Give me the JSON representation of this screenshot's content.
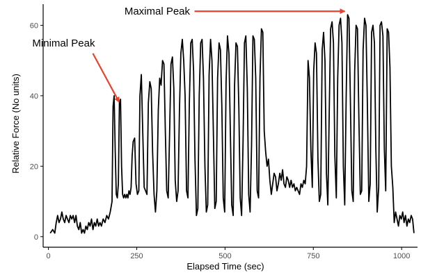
{
  "chart_data": {
    "type": "line",
    "title": "",
    "xlabel": "Elapsed Time (sec)",
    "ylabel": "Relative Force (No units)",
    "xlim": [
      -15,
      1045
    ],
    "ylim": [
      -3,
      66
    ],
    "x_ticks": [
      0,
      250,
      500,
      750,
      1000
    ],
    "y_ticks": [
      0,
      20,
      40,
      60
    ],
    "grid": false,
    "colors": {
      "line": "#000000",
      "arrow": "#e8412c",
      "axis": "#000000",
      "tick_label": "#4d4d4d"
    },
    "series": [
      {
        "values": [
          [
            5,
            1
          ],
          [
            12,
            2
          ],
          [
            18,
            1
          ],
          [
            22,
            4
          ],
          [
            26,
            6
          ],
          [
            30,
            4
          ],
          [
            34,
            5
          ],
          [
            38,
            7
          ],
          [
            42,
            5
          ],
          [
            46,
            4
          ],
          [
            50,
            6
          ],
          [
            54,
            5
          ],
          [
            58,
            4
          ],
          [
            62,
            6
          ],
          [
            66,
            5
          ],
          [
            70,
            6
          ],
          [
            74,
            4
          ],
          [
            78,
            6
          ],
          [
            82,
            3
          ],
          [
            86,
            2
          ],
          [
            90,
            4
          ],
          [
            94,
            1
          ],
          [
            98,
            2
          ],
          [
            102,
            1
          ],
          [
            106,
            3
          ],
          [
            110,
            2
          ],
          [
            114,
            4
          ],
          [
            118,
            3
          ],
          [
            122,
            5
          ],
          [
            126,
            2
          ],
          [
            130,
            4
          ],
          [
            134,
            3
          ],
          [
            138,
            5
          ],
          [
            142,
            3
          ],
          [
            146,
            4
          ],
          [
            150,
            3
          ],
          [
            155,
            5
          ],
          [
            160,
            4
          ],
          [
            165,
            6
          ],
          [
            170,
            5
          ],
          [
            175,
            7
          ],
          [
            180,
            10
          ],
          [
            183,
            37
          ],
          [
            186,
            40
          ],
          [
            189,
            25
          ],
          [
            192,
            12
          ],
          [
            195,
            11
          ],
          [
            198,
            15
          ],
          [
            201,
            38
          ],
          [
            204,
            39
          ],
          [
            207,
            20
          ],
          [
            210,
            12
          ],
          [
            213,
            11
          ],
          [
            216,
            12
          ],
          [
            219,
            11
          ],
          [
            222,
            12
          ],
          [
            225,
            11
          ],
          [
            228,
            13
          ],
          [
            231,
            12
          ],
          [
            234,
            14
          ],
          [
            237,
            23
          ],
          [
            240,
            27
          ],
          [
            244,
            28
          ],
          [
            248,
            15
          ],
          [
            252,
            12
          ],
          [
            256,
            13
          ],
          [
            259,
            40
          ],
          [
            263,
            46
          ],
          [
            267,
            30
          ],
          [
            271,
            14
          ],
          [
            275,
            13
          ],
          [
            279,
            12
          ],
          [
            283,
            38
          ],
          [
            287,
            44
          ],
          [
            291,
            42
          ],
          [
            295,
            24
          ],
          [
            299,
            12
          ],
          [
            303,
            7
          ],
          [
            307,
            13
          ],
          [
            311,
            36
          ],
          [
            315,
            45
          ],
          [
            319,
            43
          ],
          [
            323,
            50
          ],
          [
            327,
            49
          ],
          [
            331,
            30
          ],
          [
            335,
            13
          ],
          [
            339,
            11
          ],
          [
            343,
            29
          ],
          [
            347,
            49
          ],
          [
            351,
            51
          ],
          [
            355,
            42
          ],
          [
            359,
            16
          ],
          [
            363,
            10
          ],
          [
            367,
            13
          ],
          [
            371,
            36
          ],
          [
            375,
            52
          ],
          [
            379,
            56
          ],
          [
            383,
            50
          ],
          [
            387,
            40
          ],
          [
            391,
            13
          ],
          [
            395,
            11
          ],
          [
            399,
            38
          ],
          [
            403,
            55
          ],
          [
            407,
            56
          ],
          [
            411,
            47
          ],
          [
            415,
            22
          ],
          [
            419,
            6
          ],
          [
            423,
            8
          ],
          [
            427,
            40
          ],
          [
            431,
            55
          ],
          [
            435,
            56
          ],
          [
            439,
            45
          ],
          [
            443,
            20
          ],
          [
            447,
            7
          ],
          [
            451,
            9
          ],
          [
            455,
            46
          ],
          [
            459,
            56
          ],
          [
            463,
            50
          ],
          [
            467,
            30
          ],
          [
            471,
            8
          ],
          [
            475,
            10
          ],
          [
            479,
            45
          ],
          [
            483,
            55
          ],
          [
            487,
            53
          ],
          [
            491,
            37
          ],
          [
            495,
            11
          ],
          [
            499,
            7
          ],
          [
            503,
            44
          ],
          [
            507,
            57
          ],
          [
            511,
            52
          ],
          [
            515,
            30
          ],
          [
            519,
            9
          ],
          [
            523,
            6
          ],
          [
            527,
            43
          ],
          [
            531,
            55
          ],
          [
            535,
            54
          ],
          [
            539,
            37
          ],
          [
            543,
            11
          ],
          [
            547,
            6
          ],
          [
            551,
            27
          ],
          [
            555,
            55
          ],
          [
            559,
            57
          ],
          [
            563,
            42
          ],
          [
            567,
            12
          ],
          [
            571,
            7
          ],
          [
            575,
            26
          ],
          [
            579,
            57
          ],
          [
            583,
            56
          ],
          [
            587,
            45
          ],
          [
            591,
            13
          ],
          [
            595,
            11
          ],
          [
            599,
            45
          ],
          [
            603,
            59
          ],
          [
            607,
            58
          ],
          [
            611,
            30
          ],
          [
            615,
            24
          ],
          [
            619,
            20
          ],
          [
            623,
            22
          ],
          [
            627,
            16
          ],
          [
            631,
            12
          ],
          [
            635,
            15
          ],
          [
            639,
            18
          ],
          [
            643,
            17
          ],
          [
            647,
            13
          ],
          [
            651,
            15
          ],
          [
            655,
            18
          ],
          [
            659,
            16
          ],
          [
            663,
            19
          ],
          [
            667,
            15
          ],
          [
            671,
            14
          ],
          [
            675,
            17
          ],
          [
            679,
            16
          ],
          [
            683,
            14
          ],
          [
            687,
            16
          ],
          [
            691,
            14
          ],
          [
            695,
            15
          ],
          [
            699,
            13
          ],
          [
            703,
            14
          ],
          [
            707,
            13
          ],
          [
            711,
            12
          ],
          [
            715,
            15
          ],
          [
            719,
            14
          ],
          [
            723,
            16
          ],
          [
            727,
            15
          ],
          [
            731,
            20
          ],
          [
            735,
            50
          ],
          [
            739,
            45
          ],
          [
            743,
            25
          ],
          [
            747,
            14
          ],
          [
            751,
            47
          ],
          [
            755,
            55
          ],
          [
            759,
            52
          ],
          [
            763,
            22
          ],
          [
            767,
            10
          ],
          [
            771,
            12
          ],
          [
            775,
            53
          ],
          [
            779,
            58
          ],
          [
            783,
            50
          ],
          [
            787,
            18
          ],
          [
            791,
            9
          ],
          [
            795,
            35
          ],
          [
            799,
            59
          ],
          [
            803,
            61
          ],
          [
            807,
            55
          ],
          [
            811,
            23
          ],
          [
            815,
            11
          ],
          [
            819,
            45
          ],
          [
            823,
            60
          ],
          [
            827,
            62
          ],
          [
            831,
            55
          ],
          [
            835,
            20
          ],
          [
            839,
            9
          ],
          [
            843,
            40
          ],
          [
            847,
            63
          ],
          [
            851,
            62
          ],
          [
            855,
            38
          ],
          [
            859,
            13
          ],
          [
            863,
            10
          ],
          [
            867,
            47
          ],
          [
            871,
            60
          ],
          [
            875,
            59
          ],
          [
            879,
            34
          ],
          [
            883,
            12
          ],
          [
            887,
            13
          ],
          [
            891,
            53
          ],
          [
            895,
            62
          ],
          [
            899,
            60
          ],
          [
            903,
            38
          ],
          [
            907,
            10
          ],
          [
            911,
            15
          ],
          [
            915,
            58
          ],
          [
            919,
            60
          ],
          [
            923,
            55
          ],
          [
            927,
            25
          ],
          [
            931,
            7
          ],
          [
            935,
            14
          ],
          [
            939,
            60
          ],
          [
            943,
            61
          ],
          [
            947,
            57
          ],
          [
            951,
            25
          ],
          [
            955,
            13
          ],
          [
            959,
            59
          ],
          [
            963,
            58
          ],
          [
            967,
            48
          ],
          [
            971,
            20
          ],
          [
            975,
            14
          ],
          [
            979,
            4
          ],
          [
            983,
            7
          ],
          [
            987,
            5
          ],
          [
            991,
            3
          ],
          [
            995,
            6
          ],
          [
            999,
            5
          ],
          [
            1003,
            7
          ],
          [
            1007,
            4
          ],
          [
            1011,
            6
          ],
          [
            1015,
            3
          ],
          [
            1019,
            5
          ],
          [
            1023,
            4
          ],
          [
            1027,
            6
          ],
          [
            1031,
            5
          ],
          [
            1035,
            1
          ]
        ]
      }
    ],
    "annotations": [
      {
        "label": "Minimal Peak",
        "point": [
          204,
          39
        ],
        "text_at": [
          43,
          54
        ]
      },
      {
        "label": "Maximal Peak",
        "point": [
          847,
          63
        ],
        "text_at": [
          308,
          63
        ]
      }
    ]
  }
}
